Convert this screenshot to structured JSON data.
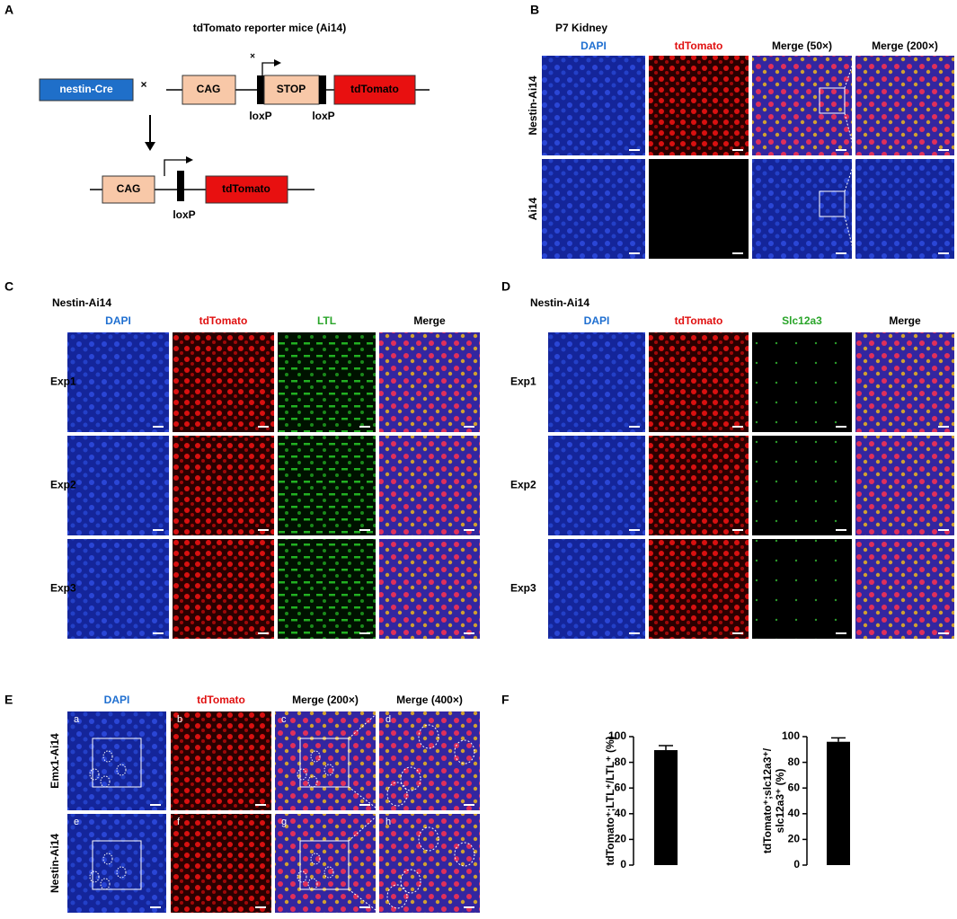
{
  "figure": {
    "A": {
      "label": "A",
      "title": "tdTomato reporter mice (Ai14)",
      "cre": "nestin-Cre",
      "cross_1": "×",
      "cag_1": "CAG",
      "stop": "STOP",
      "tdtomato_1": "tdTomato",
      "cross_2": "×",
      "loxp_1": "loxP",
      "loxp_2": "loxP",
      "cag_2": "CAG",
      "tdtomato_2": "tdTomato",
      "loxp_3": "loxP"
    },
    "B": {
      "label": "B",
      "title": "P7 Kidney",
      "columns": [
        "DAPI",
        "tdTomato",
        "Merge (50×)",
        "Merge (200×)"
      ],
      "rows": [
        "Nestin-Ai14",
        "Ai14"
      ]
    },
    "C": {
      "label": "C",
      "subtitle": "Nestin-Ai14",
      "columns": [
        "DAPI",
        "tdTomato",
        "LTL",
        "Merge"
      ],
      "rows": [
        "Exp1",
        "Exp2",
        "Exp3"
      ]
    },
    "D": {
      "label": "D",
      "subtitle": "Nestin-Ai14",
      "columns": [
        "DAPI",
        "tdTomato",
        "Slc12a3",
        "Merge"
      ],
      "rows": [
        "Exp1",
        "Exp2",
        "Exp3"
      ]
    },
    "E": {
      "label": "E",
      "columns": [
        "DAPI",
        "tdTomato",
        "Merge (200×)",
        "Merge (400×)"
      ],
      "rows": [
        "Emx1-Ai14",
        "Nestin-Ai14"
      ],
      "tile_letters": [
        [
          "a",
          "b",
          "c",
          "d"
        ],
        [
          "e",
          "f",
          "g",
          "h"
        ]
      ]
    },
    "F": {
      "label": "F"
    }
  },
  "chart_data": [
    {
      "type": "bar",
      "y_label": [
        "tdTomato⁺;LTL⁺/LTL⁺ (%)"
      ],
      "categories": [
        null
      ],
      "values": [
        89.5
      ],
      "errors": [
        3.5
      ],
      "color": "#000000",
      "ylim": [
        0,
        100
      ],
      "yticks": [
        0,
        20,
        40,
        60,
        80,
        100
      ]
    },
    {
      "type": "bar",
      "y_label": [
        "tdTomato⁺;slc12a3⁺/",
        "slc12a3⁺ (%)"
      ],
      "categories": [
        null
      ],
      "values": [
        96
      ],
      "errors": [
        3
      ],
      "color": "#000000",
      "ylim": [
        0,
        100
      ],
      "yticks": [
        0,
        20,
        40,
        60,
        80,
        100
      ]
    }
  ]
}
